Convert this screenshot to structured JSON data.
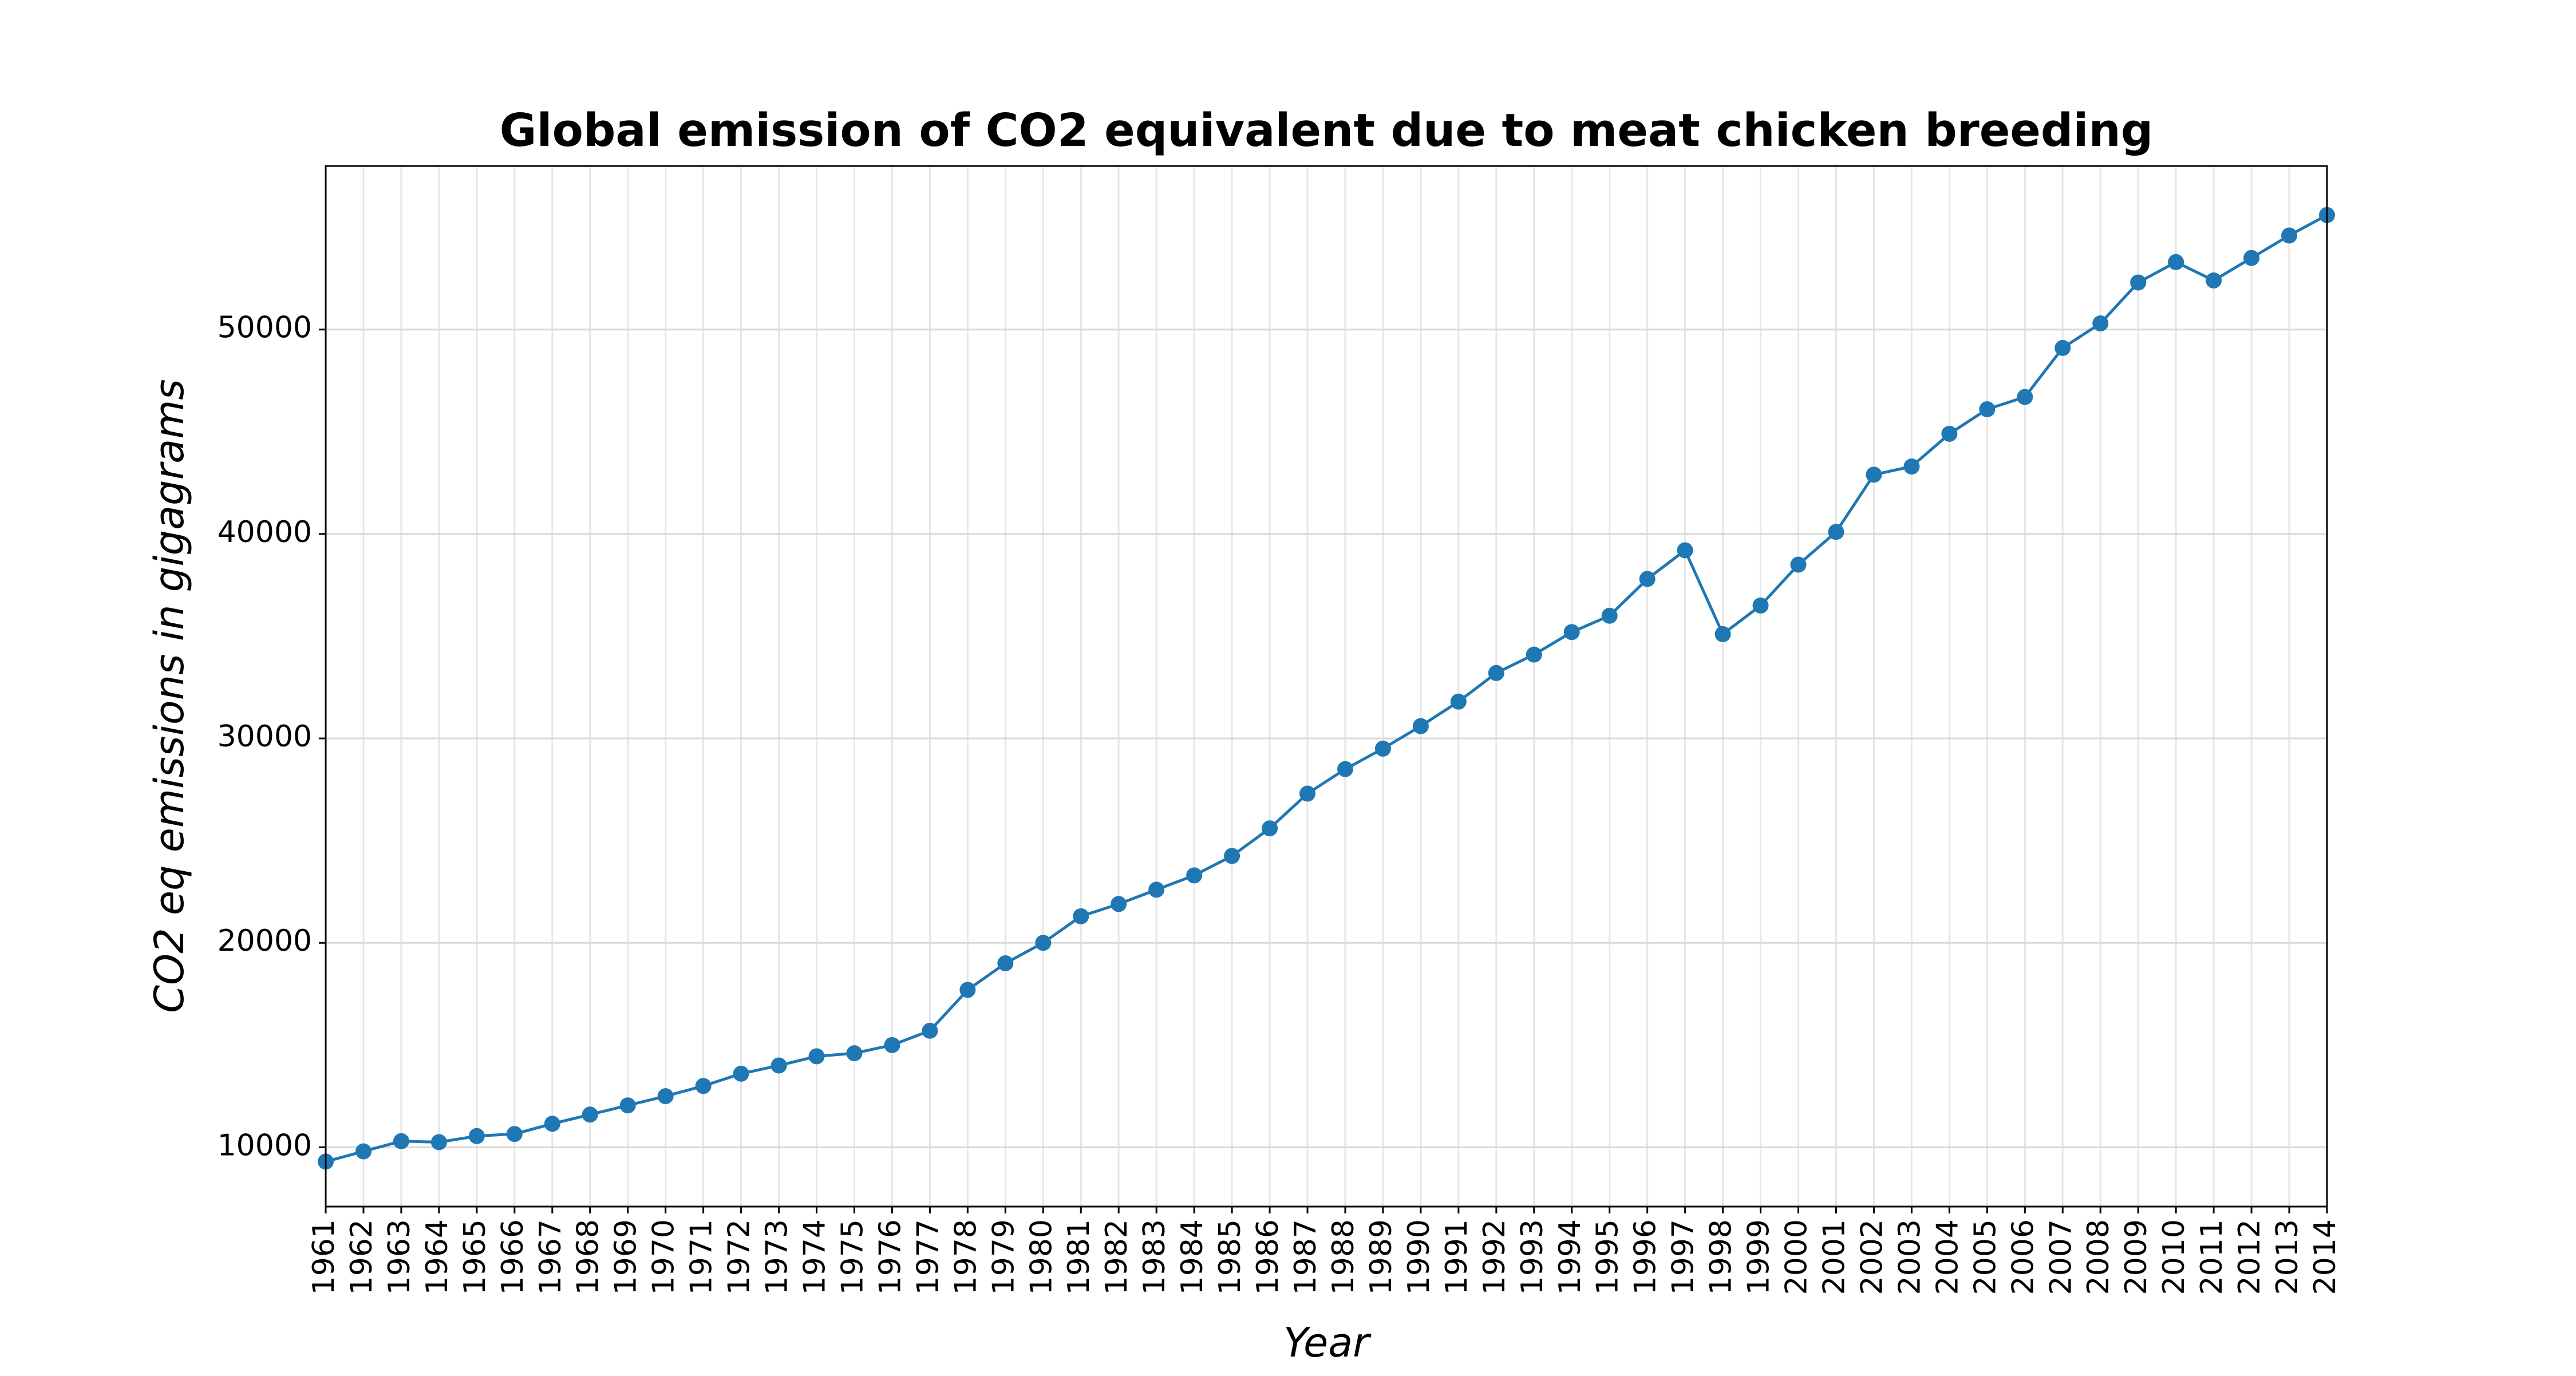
{
  "chart_data": {
    "type": "line",
    "title": "Global emission of CO2 equivalent due to meat chicken breeding",
    "xlabel": "Year",
    "ylabel": "CO2 eq emissions in gigagrams",
    "x": [
      "1961",
      "1962",
      "1963",
      "1964",
      "1965",
      "1966",
      "1967",
      "1968",
      "1969",
      "1970",
      "1971",
      "1972",
      "1973",
      "1974",
      "1975",
      "1976",
      "1977",
      "1978",
      "1979",
      "1980",
      "1981",
      "1982",
      "1983",
      "1984",
      "1985",
      "1986",
      "1987",
      "1988",
      "1989",
      "1990",
      "1991",
      "1992",
      "1993",
      "1994",
      "1995",
      "1996",
      "1997",
      "1998",
      "1999",
      "2000",
      "2001",
      "2002",
      "2003",
      "2004",
      "2005",
      "2006",
      "2007",
      "2008",
      "2009",
      "2010",
      "2011",
      "2012",
      "2013",
      "2014"
    ],
    "series": [
      {
        "values": [
          9300,
          9800,
          10300,
          10250,
          10550,
          10650,
          11150,
          11600,
          12050,
          12500,
          13000,
          13600,
          14000,
          14450,
          14600,
          15000,
          15700,
          17700,
          19000,
          20000,
          21300,
          21900,
          22600,
          23300,
          24250,
          25600,
          27300,
          28500,
          29500,
          30600,
          31800,
          33200,
          34100,
          35200,
          36000,
          37800,
          39200,
          35100,
          36500,
          38500,
          40100,
          42900,
          43300,
          44900,
          46100,
          46700,
          49100,
          50300,
          52300,
          53300,
          52400,
          53500,
          54600,
          55600
        ]
      }
    ],
    "yticks": [
      "10000",
      "20000",
      "30000",
      "40000",
      "50000"
    ],
    "ylim": [
      7100,
      58000
    ],
    "xlim": [
      "1961",
      "2014"
    ],
    "grid": true,
    "line_color": "#1f77b4",
    "grid_color": "#d9d9d9"
  }
}
